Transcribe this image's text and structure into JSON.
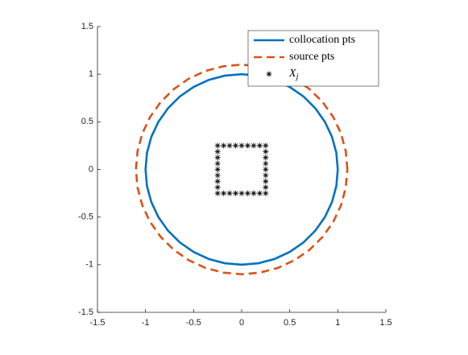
{
  "chart_data": {
    "type": "line",
    "xlim": [
      -1.5,
      1.5
    ],
    "ylim": [
      -1.5,
      1.5
    ],
    "xticks": [
      -1.5,
      -1,
      -0.5,
      0,
      0.5,
      1,
      1.5
    ],
    "yticks": [
      -1.5,
      -1,
      -0.5,
      0,
      0.5,
      1,
      1.5
    ],
    "legend_location": "northeast",
    "series": [
      {
        "name": "collocation pts",
        "color": "#0072bd",
        "style": "solid",
        "marker": "none",
        "x": [
          1,
          0.985,
          0.94,
          0.866,
          0.766,
          0.643,
          0.5,
          0.342,
          0.174,
          0,
          -0.174,
          -0.342,
          -0.5,
          -0.643,
          -0.766,
          -0.866,
          -0.94,
          -0.985,
          -1,
          -0.985,
          -0.94,
          -0.866,
          -0.766,
          -0.643,
          -0.5,
          -0.342,
          -0.174,
          0,
          0.174,
          0.342,
          0.5,
          0.643,
          0.766,
          0.866,
          0.94,
          0.985,
          1
        ],
        "y": [
          0,
          0.174,
          0.342,
          0.5,
          0.643,
          0.766,
          0.866,
          0.94,
          0.985,
          1,
          0.985,
          0.94,
          0.866,
          0.766,
          0.643,
          0.5,
          0.342,
          0.174,
          0,
          -0.174,
          -0.342,
          -0.5,
          -0.643,
          -0.766,
          -0.866,
          -0.94,
          -0.985,
          -1,
          -0.985,
          -0.94,
          -0.866,
          -0.766,
          -0.643,
          -0.5,
          -0.342,
          -0.174,
          0
        ]
      },
      {
        "name": "source pts",
        "color": "#d95319",
        "style": "dashed",
        "marker": "none",
        "x": [
          1.1,
          1.083,
          1.034,
          0.953,
          0.843,
          0.707,
          0.55,
          0.376,
          0.191,
          0,
          -0.191,
          -0.376,
          -0.55,
          -0.707,
          -0.843,
          -0.953,
          -1.034,
          -1.083,
          -1.1,
          -1.083,
          -1.034,
          -0.953,
          -0.843,
          -0.707,
          -0.55,
          -0.376,
          -0.191,
          0,
          0.191,
          0.376,
          0.55,
          0.707,
          0.843,
          0.953,
          1.034,
          1.083,
          1.1
        ],
        "y": [
          0,
          0.191,
          0.376,
          0.55,
          0.707,
          0.843,
          0.953,
          1.034,
          1.083,
          1.1,
          1.083,
          1.034,
          0.953,
          0.843,
          0.707,
          0.55,
          0.376,
          0.191,
          0,
          -0.191,
          -0.376,
          -0.55,
          -0.707,
          -0.843,
          -0.953,
          -1.034,
          -1.083,
          -1.1,
          -1.083,
          -1.034,
          -0.953,
          -0.843,
          -0.707,
          -0.55,
          -0.376,
          -0.191,
          0
        ]
      },
      {
        "name": "X_j",
        "color": "#000000",
        "style": "none",
        "marker": "asterisk",
        "x": [
          -0.25,
          -0.1875,
          -0.125,
          -0.0625,
          0,
          0.0625,
          0.125,
          0.1875,
          0.25,
          0.25,
          0.25,
          0.25,
          0.25,
          0.25,
          0.25,
          0.25,
          0.25,
          0.1875,
          0.125,
          0.0625,
          0,
          -0.0625,
          -0.125,
          -0.1875,
          -0.25,
          -0.25,
          -0.25,
          -0.25,
          -0.25,
          -0.25,
          -0.25,
          -0.25
        ],
        "y": [
          -0.25,
          -0.25,
          -0.25,
          -0.25,
          -0.25,
          -0.25,
          -0.25,
          -0.25,
          -0.25,
          -0.1875,
          -0.125,
          -0.0625,
          0,
          0.0625,
          0.125,
          0.1875,
          0.25,
          0.25,
          0.25,
          0.25,
          0.25,
          0.25,
          0.25,
          0.25,
          0.25,
          0.1875,
          0.125,
          0.0625,
          0,
          -0.0625,
          -0.125,
          -0.1875
        ]
      }
    ]
  }
}
